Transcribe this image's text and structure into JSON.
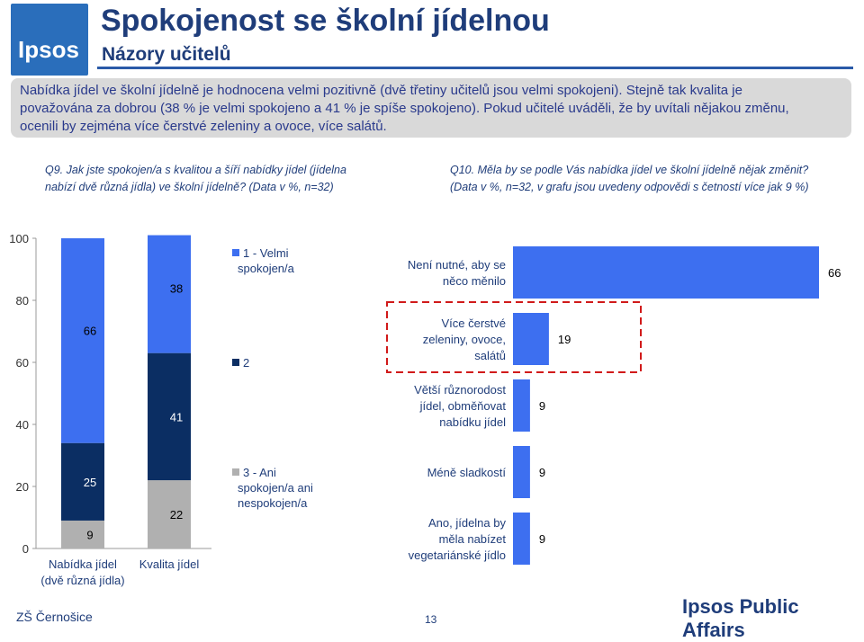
{
  "header": {
    "title": "Spokojenost se školní jídelnou",
    "subtitle": "Názory učitelů",
    "logo_text": "Ipsos"
  },
  "summary": {
    "line1": "Nabídka jídel ve školní jídelně je hodnocena velmi pozitivně (dvě třetiny učitelů jsou velmi spokojeni). Stejně tak kvalita je",
    "line2": "považována za dobrou (38 % je velmi spokojeno a 41 % je spíše spokojeno). Pokud učitelé uváděli, že by uvítali nějakou změnu,",
    "line3": "ocenili by zejména více čerstvé zeleniny a ovoce, více salátů."
  },
  "questions": {
    "q9_line1": "Q9. Jak jste spokojen/a s kvalitou a šíří nabídky jídel (jídelna",
    "q9_line2": "nabízí dvě různá jídla) ve školní jídelně? (Data v %, n=32)",
    "q10_line1": "Q10. Měla by se podle Vás nabídka jídel ve školní jídelně nějak změnit?",
    "q10_line2": "(Data v %, n=32, v grafu jsou uvedeny odpovědi s četností více jak 9 %)"
  },
  "chart_data": [
    {
      "type": "bar",
      "stacked": true,
      "categories": [
        [
          "Nabídka jídel",
          "(dvě různá jídla)"
        ],
        [
          "Kvalita jídel"
        ]
      ],
      "series": [
        {
          "name": "1 - Velmi spokojen/a",
          "values": [
            66,
            38
          ],
          "color": "#3d6ff0"
        },
        {
          "name": "2",
          "values": [
            25,
            41
          ],
          "color": "#0b2e63"
        },
        {
          "name": "3 - Ani spokojen/a ani nespokojen/a",
          "values": [
            9,
            22
          ],
          "color": "#b0b0b0"
        }
      ],
      "legend_labels": [
        [
          "1 - Velmi",
          "spokojen/a"
        ],
        [
          "2"
        ],
        [
          "3 - Ani",
          "spokojen/a ani",
          "nespokojen/a"
        ]
      ],
      "yticks": [
        "0",
        "20",
        "40",
        "60",
        "80",
        "100"
      ],
      "ylim": [
        0,
        100
      ]
    },
    {
      "type": "bar",
      "orientation": "horizontal",
      "categories": [
        [
          "Není nutné, aby se",
          "něco měnilo"
        ],
        [
          "Více čerstvé",
          "zeleniny, ovoce,",
          "salátů"
        ],
        [
          "Větší různorodost",
          "jídel, obměňovat",
          "nabídku jídel"
        ],
        [
          "Méně sladkostí"
        ],
        [
          "Ano, jídelna by",
          "měla nabízet",
          "vegetariánské jídlo"
        ]
      ],
      "values": [
        66,
        19,
        9,
        9,
        9
      ],
      "color": "#3d6ff0",
      "highlighted_category": 1
    }
  ],
  "footer": {
    "school": "ZŠ Černošice",
    "page": "13",
    "brand": "Ipsos Public Affairs"
  }
}
